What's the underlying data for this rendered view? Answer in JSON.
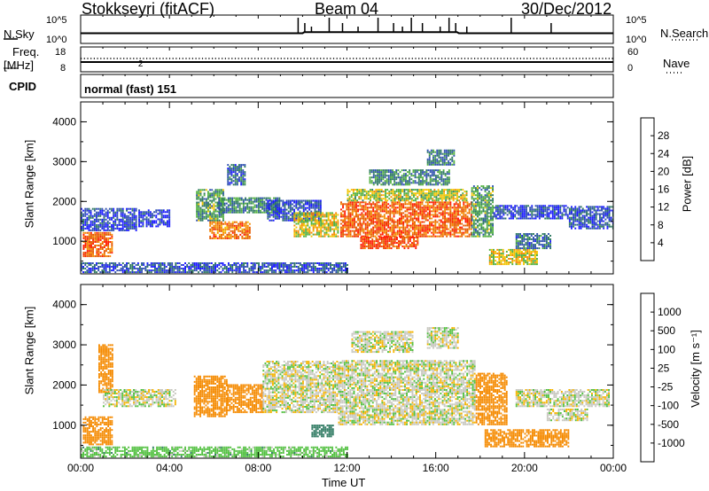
{
  "header": {
    "station": "Stokkseyri (fitACF)",
    "beam": "Beam 04",
    "date": "30/Dec/2012"
  },
  "top_panels": {
    "nsky_label": "N.Sky",
    "nsky_ticks": [
      "10^5",
      "10^0"
    ],
    "nsearch_label": "N.Search",
    "nsearch_ticks": [
      "10^5",
      "10^0"
    ],
    "freq_label_line1": "Freq.",
    "freq_label_line2": "[MHz]",
    "freq_ticks": [
      "18",
      "8"
    ],
    "nave_label": "Nave",
    "nave_ticks": [
      "60",
      "0"
    ],
    "cpid_label": "CPID",
    "cpid_value": "normal (fast) 151"
  },
  "colors": {
    "power_scale": [
      "#1a1aff",
      "#2e4fb0",
      "#2f7a62",
      "#52b040",
      "#f2c400",
      "#f58a00",
      "#e65a00",
      "#ff1a00"
    ],
    "velocity_scale": [
      "#ff1a00",
      "#e65a00",
      "#f58a00",
      "#f5b400",
      "#c8c8c0",
      "#52c040",
      "#2f7a62",
      "#2e4fb0"
    ]
  },
  "chart_data": [
    {
      "type": "heatmap",
      "name": "power",
      "ylabel": "Slant Range [km]",
      "yticks": [
        "4000",
        "3000",
        "2000",
        "1000"
      ],
      "ylim": [
        180,
        4500
      ],
      "xlim": [
        0,
        24
      ],
      "colorbar_label": "Power [dB]",
      "colorbar_ticks": [
        "28",
        "24",
        "20",
        "16",
        "12",
        "8",
        "4"
      ],
      "colorbar_range": [
        0,
        32
      ],
      "regions": [
        {
          "t0": 0.1,
          "t1": 1.4,
          "r0": 600,
          "r1": 1200,
          "v": 26
        },
        {
          "t0": 0.0,
          "t1": 2.5,
          "r0": 1250,
          "r1": 1800,
          "v": 5
        },
        {
          "t0": 2.6,
          "t1": 4.0,
          "r0": 1350,
          "r1": 1800,
          "v": 4
        },
        {
          "t0": 5.2,
          "t1": 6.4,
          "r0": 1500,
          "r1": 2300,
          "v": 12
        },
        {
          "t0": 5.8,
          "t1": 7.6,
          "r0": 1050,
          "r1": 1500,
          "v": 24
        },
        {
          "t0": 6.2,
          "t1": 9.0,
          "r0": 1700,
          "r1": 2100,
          "v": 10
        },
        {
          "t0": 6.6,
          "t1": 7.4,
          "r0": 2400,
          "r1": 2900,
          "v": 8
        },
        {
          "t0": 8.4,
          "t1": 10.8,
          "r0": 1500,
          "r1": 2000,
          "v": 6
        },
        {
          "t0": 9.6,
          "t1": 11.6,
          "r0": 1100,
          "r1": 1700,
          "v": 18
        },
        {
          "t0": 11.7,
          "t1": 17.6,
          "r0": 1100,
          "r1": 2000,
          "v": 26
        },
        {
          "t0": 12.0,
          "t1": 17.4,
          "r0": 2000,
          "r1": 2300,
          "v": 16
        },
        {
          "t0": 12.6,
          "t1": 15.2,
          "r0": 800,
          "r1": 1100,
          "v": 28
        },
        {
          "t0": 13.0,
          "t1": 16.6,
          "r0": 2400,
          "r1": 2800,
          "v": 10
        },
        {
          "t0": 15.6,
          "t1": 16.8,
          "r0": 2900,
          "r1": 3300,
          "v": 9
        },
        {
          "t0": 17.6,
          "t1": 18.6,
          "r0": 1100,
          "r1": 2400,
          "v": 12
        },
        {
          "t0": 18.6,
          "t1": 22.0,
          "r0": 1550,
          "r1": 1900,
          "v": 5
        },
        {
          "t0": 18.4,
          "t1": 20.6,
          "r0": 400,
          "r1": 800,
          "v": 18
        },
        {
          "t0": 19.6,
          "t1": 21.2,
          "r0": 800,
          "r1": 1200,
          "v": 8
        },
        {
          "t0": 22.0,
          "t1": 24.0,
          "r0": 1300,
          "r1": 1850,
          "v": 6
        },
        {
          "t0": 0.0,
          "t1": 12.0,
          "r0": 200,
          "r1": 450,
          "v": 6
        }
      ]
    },
    {
      "type": "heatmap",
      "name": "velocity",
      "ylabel": "Slant Range [km]",
      "yticks": [
        "4000",
        "3000",
        "2000",
        "1000"
      ],
      "ylim": [
        180,
        4500
      ],
      "xlim": [
        0,
        24
      ],
      "xlabel": "Time UT",
      "xticks": [
        "00:00",
        "04:00",
        "08:00",
        "12:00",
        "16:00",
        "20:00",
        "00:00"
      ],
      "colorbar_label": "Velocity [m s⁻¹]",
      "colorbar_ticks": [
        "1000",
        "500",
        "100",
        "25",
        "-25",
        "-100",
        "-500",
        "-1000"
      ],
      "regions": [
        {
          "t0": 0.1,
          "t1": 1.4,
          "r0": 500,
          "r1": 1200,
          "v": -150
        },
        {
          "t0": 0.8,
          "t1": 1.4,
          "r0": 1800,
          "r1": 3000,
          "v": -200
        },
        {
          "t0": 1.0,
          "t1": 4.3,
          "r0": 1450,
          "r1": 1900,
          "v": 0
        },
        {
          "t0": 5.1,
          "t1": 6.6,
          "r0": 1200,
          "r1": 2200,
          "v": -200
        },
        {
          "t0": 6.6,
          "t1": 8.2,
          "r0": 1300,
          "r1": 2000,
          "v": -150
        },
        {
          "t0": 8.2,
          "t1": 11.6,
          "r0": 1300,
          "r1": 2600,
          "v": 0
        },
        {
          "t0": 11.6,
          "t1": 17.8,
          "r0": 1000,
          "r1": 2600,
          "v": 0
        },
        {
          "t0": 12.2,
          "t1": 15.0,
          "r0": 2800,
          "r1": 3300,
          "v": 0
        },
        {
          "t0": 10.4,
          "t1": 11.4,
          "r0": 700,
          "r1": 1000,
          "v": 150
        },
        {
          "t0": 15.6,
          "t1": 17.0,
          "r0": 2900,
          "r1": 3400,
          "v": 0
        },
        {
          "t0": 17.8,
          "t1": 19.2,
          "r0": 1000,
          "r1": 2300,
          "v": -200
        },
        {
          "t0": 18.2,
          "t1": 22.0,
          "r0": 450,
          "r1": 900,
          "v": -300
        },
        {
          "t0": 19.6,
          "t1": 23.8,
          "r0": 1450,
          "r1": 1900,
          "v": 0
        },
        {
          "t0": 21.0,
          "t1": 22.8,
          "r0": 1100,
          "r1": 1400,
          "v": 0
        },
        {
          "t0": 0.0,
          "t1": 12.0,
          "r0": 200,
          "r1": 450,
          "v": 60
        }
      ]
    }
  ]
}
